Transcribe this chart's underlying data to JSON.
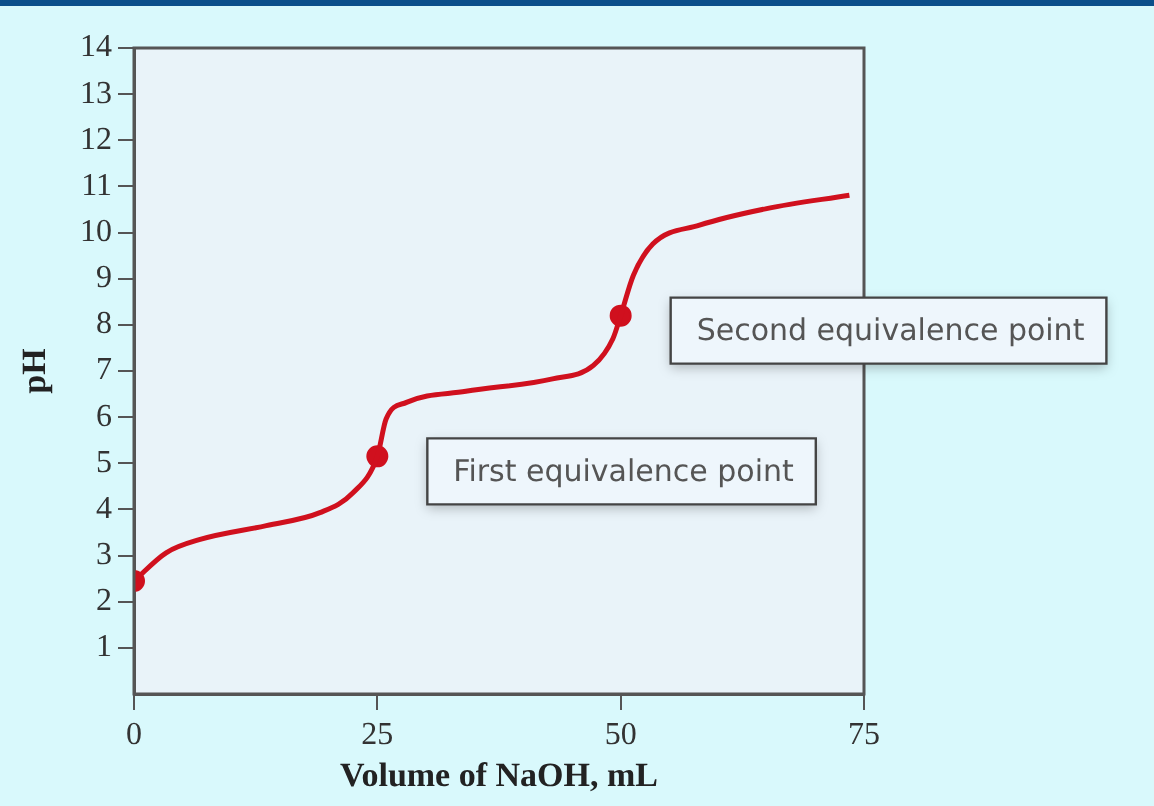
{
  "chart_data": {
    "type": "line",
    "xlabel": "Volume of NaOH, mL",
    "ylabel": "pH",
    "xlim": [
      0,
      75
    ],
    "xticks": [
      0,
      25,
      50,
      75
    ],
    "ylim": [
      0,
      14
    ],
    "yticks": [
      1,
      2,
      3,
      4,
      5,
      6,
      7,
      8,
      9,
      10,
      11,
      12,
      13,
      14
    ],
    "grid": false,
    "legend": false,
    "series": [
      {
        "color": "#d0101e",
        "marker": "none",
        "x": [
          0,
          3.3,
          6.8,
          13.6,
          19.1,
          22.5,
          25,
          25.9,
          28,
          34.1,
          43,
          47.2,
          49.2,
          50,
          51.3,
          53.3,
          58.1,
          65,
          73.5
        ],
        "values": [
          2.45,
          3.06,
          3.35,
          3.65,
          3.93,
          4.36,
          5.15,
          5.96,
          6.32,
          6.56,
          6.83,
          7.12,
          7.7,
          8.2,
          9.07,
          9.75,
          10.16,
          10.52,
          10.81
        ]
      },
      {
        "type": "scatter",
        "color": "#d0101e",
        "marker": "circle",
        "x": [
          0,
          25,
          50
        ],
        "values": [
          2.45,
          5.15,
          8.2
        ]
      }
    ],
    "annotations": [
      {
        "text": "First equivalence point",
        "x": 25,
        "y": 5.15
      },
      {
        "text": "Second equivalence point",
        "x": 50,
        "y": 8.2
      }
    ]
  }
}
